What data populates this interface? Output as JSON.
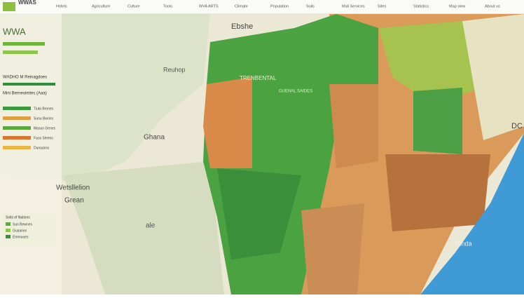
{
  "header": {
    "logo": "WWAS",
    "nav": [
      "Hotels",
      "Agriculture",
      "Culture",
      "Tools",
      "WVA ARTS",
      "Climate",
      "Population",
      "Soils",
      "Mali Services",
      "Sites",
      "Statistics",
      "Map view",
      "About us"
    ]
  },
  "legend": {
    "title": "WWA",
    "heading": "WADHO M Reinagdoes",
    "subheading": "Mini Berneoimtes (Aaa)",
    "items": [
      "Tiuta Brnnes",
      "Sunu Bwons",
      "Masun Genes",
      "Faos Sleens",
      "Dunaanra"
    ],
    "lower_title": "Soils of Nations",
    "lower_items": [
      "Sun Bewnes",
      "Guaanes",
      "Emmuues"
    ]
  },
  "map_labels": {
    "north": "Ebshe",
    "northwest": "Reuhop",
    "center": "TRENBENTAL",
    "center_sub": "GUENAL SAIDES",
    "ghana": "Ghana",
    "west": "Wetsllelion",
    "west_sub": "Grean",
    "southwest": "ale",
    "east": "DC",
    "coast": "Hinda"
  }
}
